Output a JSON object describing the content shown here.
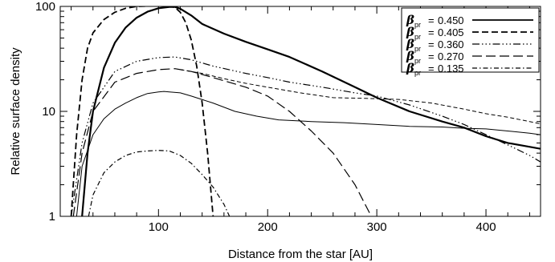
{
  "chart_data": {
    "type": "line",
    "xlabel": "Distance from the star [AU]",
    "ylabel": "Relative surface density",
    "xlim": [
      10,
      450
    ],
    "ylim": [
      1,
      100
    ],
    "yscale": "log",
    "xticks": [
      100,
      200,
      300,
      400
    ],
    "yticks": [
      1,
      10,
      100
    ],
    "legend_position": "top-right",
    "series": [
      {
        "name": "0.450",
        "legend_symbol": "β",
        "legend_sub": "pr",
        "dash": "",
        "stroke_width": 2.2,
        "points": [
          [
            30,
            1
          ],
          [
            35,
            4
          ],
          [
            40,
            10
          ],
          [
            50,
            26
          ],
          [
            60,
            45
          ],
          [
            70,
            63
          ],
          [
            80,
            78
          ],
          [
            90,
            89
          ],
          [
            100,
            96
          ],
          [
            110,
            99
          ],
          [
            115,
            99
          ],
          [
            120,
            95
          ],
          [
            130,
            82
          ],
          [
            140,
            68
          ],
          [
            160,
            55
          ],
          [
            180,
            46
          ],
          [
            200,
            39
          ],
          [
            220,
            33
          ],
          [
            250,
            24
          ],
          [
            280,
            17
          ],
          [
            300,
            13.5
          ],
          [
            330,
            10
          ],
          [
            360,
            8
          ],
          [
            380,
            7
          ],
          [
            400,
            5.8
          ],
          [
            420,
            5
          ],
          [
            450,
            4.4
          ]
        ]
      },
      {
        "name": "0.405",
        "legend_symbol": "β",
        "legend_sub": "pr",
        "dash": "8,4",
        "stroke_width": 1.8,
        "points": [
          [
            20,
            1
          ],
          [
            25,
            6
          ],
          [
            30,
            20
          ],
          [
            35,
            40
          ],
          [
            40,
            56
          ],
          [
            50,
            75
          ],
          [
            60,
            88
          ],
          [
            70,
            96
          ],
          [
            80,
            100
          ],
          [
            95,
            101
          ],
          [
            110,
            100
          ],
          [
            115,
            98
          ],
          [
            120,
            88
          ],
          [
            125,
            70
          ],
          [
            130,
            48
          ],
          [
            135,
            27
          ],
          [
            140,
            12
          ],
          [
            145,
            4
          ],
          [
            150,
            1
          ]
        ]
      },
      {
        "name": "0.360",
        "legend_symbol": "β",
        "legend_sub": "pr",
        "dash": "9,3,1.5,3,1.5,3,1.5,3",
        "stroke_width": 1.2,
        "points": [
          [
            20,
            1
          ],
          [
            30,
            5
          ],
          [
            40,
            12
          ],
          [
            60,
            24
          ],
          [
            80,
            30
          ],
          [
            100,
            32.5
          ],
          [
            115,
            33
          ],
          [
            130,
            31
          ],
          [
            150,
            27
          ],
          [
            180,
            23
          ],
          [
            200,
            21
          ],
          [
            220,
            19
          ],
          [
            250,
            17
          ],
          [
            280,
            15
          ],
          [
            300,
            14
          ],
          [
            330,
            11.5
          ],
          [
            360,
            9
          ],
          [
            380,
            7.5
          ],
          [
            400,
            6
          ],
          [
            420,
            4.8
          ],
          [
            440,
            3.8
          ],
          [
            450,
            3.3
          ]
        ]
      },
      {
        "name": "0.270",
        "legend_symbol": "β",
        "legend_sub": "pr",
        "dash": "12,5",
        "stroke_width": 1.2,
        "points": [
          [
            22,
            1
          ],
          [
            30,
            4
          ],
          [
            40,
            10
          ],
          [
            60,
            19
          ],
          [
            80,
            23
          ],
          [
            100,
            25
          ],
          [
            115,
            25.5
          ],
          [
            130,
            24
          ],
          [
            150,
            21
          ],
          [
            180,
            17
          ],
          [
            200,
            14
          ],
          [
            220,
            10
          ],
          [
            240,
            6.5
          ],
          [
            260,
            4
          ],
          [
            280,
            2
          ],
          [
            295,
            1
          ]
        ]
      },
      {
        "name": "0.135",
        "legend_symbol": "β",
        "legend_sub": "pr",
        "dash": "6,3,1.5,3",
        "stroke_width": 1.2,
        "points": [
          [
            36,
            1
          ],
          [
            40,
            1.6
          ],
          [
            50,
            2.6
          ],
          [
            60,
            3.3
          ],
          [
            70,
            3.8
          ],
          [
            80,
            4.1
          ],
          [
            90,
            4.2
          ],
          [
            100,
            4.25
          ],
          [
            110,
            4.2
          ],
          [
            120,
            3.8
          ],
          [
            130,
            3.2
          ],
          [
            140,
            2.5
          ],
          [
            150,
            1.9
          ],
          [
            160,
            1.3
          ],
          [
            165,
            1
          ]
        ]
      },
      {
        "name": "",
        "dash": "",
        "stroke_width": 1,
        "points": [
          [
            25,
            1
          ],
          [
            30,
            3
          ],
          [
            40,
            6
          ],
          [
            50,
            8.5
          ],
          [
            60,
            10.5
          ],
          [
            70,
            12
          ],
          [
            80,
            13.5
          ],
          [
            90,
            14.8
          ],
          [
            100,
            15.3
          ],
          [
            105,
            15.5
          ],
          [
            110,
            15.3
          ],
          [
            120,
            15
          ],
          [
            130,
            14
          ],
          [
            150,
            12
          ],
          [
            170,
            10
          ],
          [
            190,
            9
          ],
          [
            210,
            8.3
          ],
          [
            240,
            8
          ],
          [
            270,
            7.8
          ],
          [
            300,
            7.5
          ],
          [
            330,
            7.2
          ],
          [
            360,
            7.1
          ],
          [
            380,
            6.9
          ],
          [
            400,
            6.8
          ],
          [
            420,
            6.5
          ],
          [
            440,
            6.2
          ],
          [
            450,
            6
          ]
        ]
      },
      {
        "name": "",
        "dash": "5,3",
        "stroke_width": 1,
        "points": [
          [
            120,
            25
          ],
          [
            140,
            23
          ],
          [
            160,
            20.5
          ],
          [
            180,
            18.5
          ],
          [
            200,
            17
          ],
          [
            230,
            15
          ],
          [
            260,
            13.5
          ],
          [
            290,
            13.3
          ],
          [
            320,
            13
          ],
          [
            350,
            12
          ],
          [
            380,
            10.5
          ],
          [
            400,
            9.5
          ],
          [
            420,
            8.8
          ],
          [
            440,
            8
          ],
          [
            450,
            7.6
          ]
        ]
      }
    ]
  }
}
